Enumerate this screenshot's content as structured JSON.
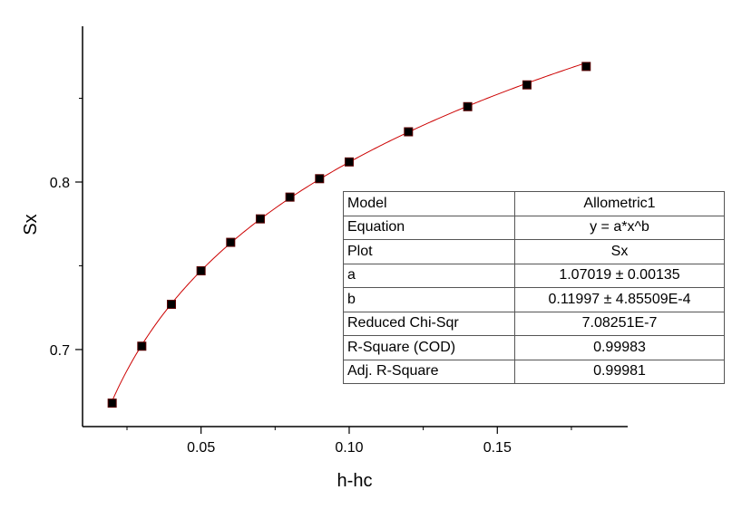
{
  "chart_data": {
    "type": "scatter",
    "xlabel": "h-hc",
    "ylabel": "Sx",
    "xlim": [
      0.01,
      0.194
    ],
    "ylim": [
      0.654,
      0.893
    ],
    "x_ticks": [
      0.05,
      0.1,
      0.15
    ],
    "x_tick_labels": [
      "0.05",
      "0.10",
      "0.15"
    ],
    "y_ticks": [
      0.7,
      0.8
    ],
    "y_tick_labels": [
      "0.7",
      "0.8"
    ],
    "grid": false,
    "series": [
      {
        "x": [
          0.02,
          0.03,
          0.04,
          0.05,
          0.06,
          0.07,
          0.08,
          0.09,
          0.1,
          0.12,
          0.14,
          0.16,
          0.18
        ],
        "y": [
          0.668,
          0.702,
          0.727,
          0.747,
          0.764,
          0.778,
          0.791,
          0.802,
          0.812,
          0.83,
          0.845,
          0.858,
          0.869
        ],
        "marker": "square",
        "color": "#000000"
      }
    ],
    "fit": {
      "model": "a*x^b",
      "a": 1.07019,
      "b": 0.11997,
      "x_range": [
        0.02,
        0.18
      ],
      "color": "#cc0000"
    },
    "fit_table": [
      {
        "key": "Model",
        "value": "Allometric1"
      },
      {
        "key": "Equation",
        "value": "y = a*x^b"
      },
      {
        "key": "Plot",
        "value": "Sx"
      },
      {
        "key": "a",
        "value": "1.07019 ± 0.00135"
      },
      {
        "key": "b",
        "value": "0.11997 ± 4.85509E-4"
      },
      {
        "key": "Reduced Chi-Sqr",
        "value": "7.08251E-7"
      },
      {
        "key": "R-Square (COD)",
        "value": "0.99983"
      },
      {
        "key": "Adj. R-Square",
        "value": "0.99981"
      }
    ]
  }
}
